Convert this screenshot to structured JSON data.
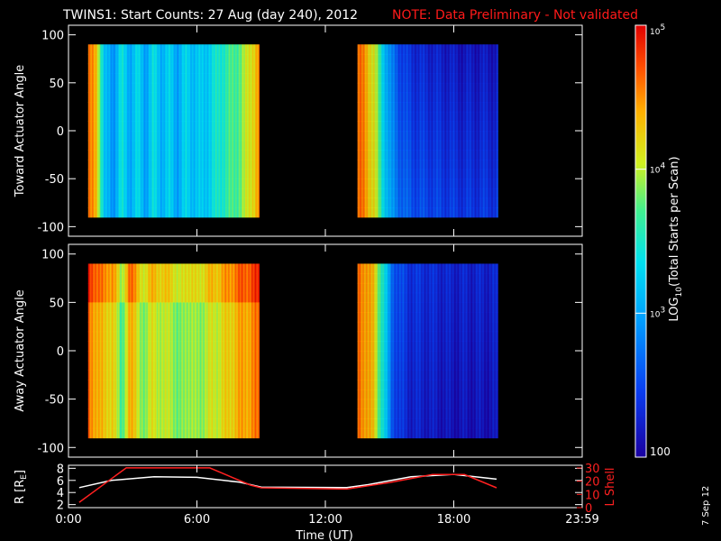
{
  "page": {
    "title": "TWINS1: Start Counts: 27 Aug (day 240), 2012",
    "note": "NOTE: Data Preliminary - Not validated",
    "side_date": "7 Sep 12"
  },
  "chart_data": [
    {
      "type": "heatmap",
      "ylabel": "Toward Actuator Angle",
      "ylim": [
        -110,
        110
      ],
      "yticks": [
        "100",
        "50",
        "0",
        "-50",
        "-100"
      ],
      "ytick_values": [
        100,
        50,
        0,
        -50,
        -100
      ],
      "data_y_range": [
        -90,
        90
      ],
      "xlim_hours": [
        0,
        24
      ],
      "segments": [
        {
          "start": "0:55",
          "end": "8:55",
          "profile": [
            4.55,
            4.3,
            3.1,
            2.9,
            3.4,
            3.05,
            3.3,
            3.0,
            3.35,
            3.1,
            3.25,
            3.0,
            3.3,
            3.15,
            3.2,
            3.3,
            3.5,
            3.6,
            3.7,
            3.9,
            4.2,
            4.5
          ]
        },
        {
          "start": "13:30",
          "end": "20:05",
          "profile": [
            4.6,
            4.45,
            4.1,
            3.4,
            2.85,
            2.65,
            2.5,
            2.45,
            2.4,
            2.4,
            2.35,
            2.35,
            2.3,
            2.3,
            2.3,
            2.3,
            2.3,
            2.3
          ]
        }
      ]
    },
    {
      "type": "heatmap",
      "ylabel": "Away Actuator Angle",
      "ylim": [
        -110,
        110
      ],
      "yticks": [
        "100",
        "50",
        "0",
        "-50",
        "-100"
      ],
      "ytick_values": [
        100,
        50,
        0,
        -50,
        -100
      ],
      "data_y_range": [
        -90,
        90
      ],
      "xlim_hours": [
        0,
        24
      ],
      "segments": [
        {
          "start": "0:55",
          "end": "8:55",
          "profile": [
            4.55,
            4.45,
            4.2,
            4.3,
            3.6,
            4.4,
            4.1,
            3.8,
            4.2,
            3.9,
            4.1,
            3.7,
            4.0,
            3.85,
            3.95,
            4.05,
            4.1,
            4.2,
            4.35,
            4.4,
            4.5,
            4.55
          ]
        },
        {
          "start": "13:30",
          "end": "20:05",
          "profile": [
            4.6,
            4.5,
            4.2,
            3.5,
            2.7,
            2.45,
            2.35,
            2.3,
            2.3,
            2.25,
            2.25,
            2.2,
            2.2,
            2.2,
            2.2,
            2.2,
            2.2,
            2.2
          ]
        }
      ]
    },
    {
      "type": "line",
      "ylabel": "R [RE]",
      "ylabel2": "L Shell",
      "ylim": [
        1.5,
        8.5
      ],
      "yticks": [
        "8",
        "6",
        "4",
        "2"
      ],
      "ytick_values": [
        8,
        6,
        4,
        2
      ],
      "ylim2": [
        0,
        32
      ],
      "yticks2": [
        "30",
        "20",
        "10",
        "0"
      ],
      "ytick2_values": [
        30,
        20,
        10,
        0
      ],
      "xlim_hours": [
        0,
        24
      ],
      "xticks": [
        "0:00",
        "6:00",
        "12:00",
        "18:00",
        "23:59"
      ],
      "xtick_values": [
        0,
        6,
        12,
        18,
        24
      ],
      "xlabel": "Time (UT)",
      "series": [
        {
          "axis": "R",
          "x": [
            0.5,
            2,
            4,
            6,
            8,
            9,
            13,
            14,
            16,
            18,
            20
          ],
          "y": [
            4.8,
            6.0,
            6.6,
            6.5,
            5.7,
            4.9,
            4.8,
            5.3,
            6.6,
            7.0,
            6.2
          ]
        },
        {
          "axis": "L",
          "x": [
            0.5,
            2.7,
            6.6,
            8.5,
            9.0,
            13.0,
            15.0,
            17.0,
            18.5,
            20.0
          ],
          "y": [
            4,
            30,
            30,
            17,
            15,
            14,
            19,
            25,
            25,
            15
          ]
        }
      ]
    }
  ],
  "colorbar": {
    "label_main": "LOG",
    "label_sub": "10",
    "label_rest": "(Total Starts per Scan)",
    "ticks": [
      {
        "base": "10",
        "exp": "5",
        "value": 5
      },
      {
        "base": "10",
        "exp": "4",
        "value": 4
      },
      {
        "base": "10",
        "exp": "3",
        "value": 3
      },
      {
        "base": "100",
        "exp": "",
        "value": 2
      }
    ],
    "range": [
      2,
      5
    ]
  }
}
